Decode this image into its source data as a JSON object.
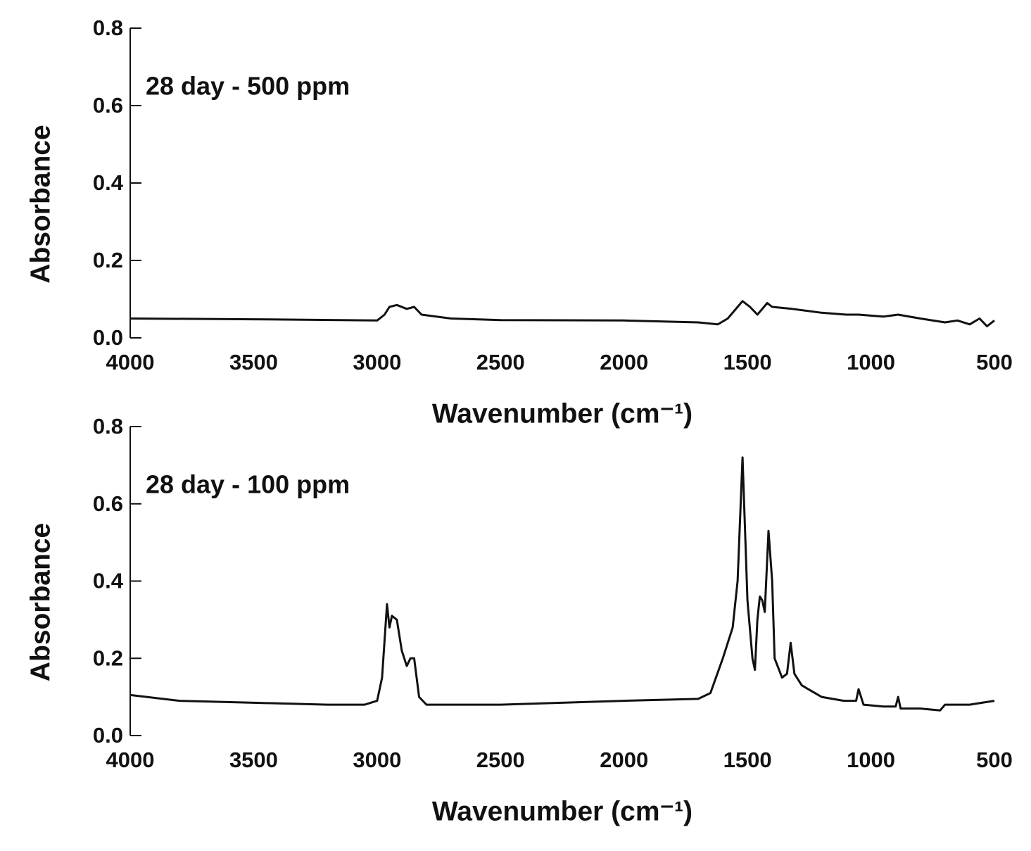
{
  "chart_data": [
    {
      "type": "line",
      "annotation": "28 day - 500 ppm",
      "xlabel": "Wavenumber (cm⁻¹)",
      "ylabel": "Absorbance",
      "xlim": [
        4000,
        500
      ],
      "xticks": [
        4000,
        3500,
        3000,
        2500,
        2000,
        1500,
        1000,
        500
      ],
      "ylim": [
        0,
        0.8
      ],
      "yticks": [
        {
          "value": 0,
          "label": "0.0"
        },
        0.2,
        0.4,
        0.6,
        0.8
      ],
      "series": [
        {
          "color": "#111111",
          "x": [
            4000,
            3500,
            3000,
            2970,
            2950,
            2920,
            2880,
            2850,
            2820,
            2700,
            2500,
            2000,
            1700,
            1620,
            1580,
            1540,
            1520,
            1490,
            1460,
            1440,
            1420,
            1400,
            1320,
            1200,
            1100,
            1050,
            950,
            890,
            800,
            700,
            650,
            600,
            560,
            530,
            500
          ],
          "values": [
            0.05,
            0.048,
            0.045,
            0.06,
            0.08,
            0.085,
            0.075,
            0.08,
            0.06,
            0.05,
            0.046,
            0.045,
            0.04,
            0.035,
            0.05,
            0.08,
            0.095,
            0.08,
            0.06,
            0.075,
            0.09,
            0.08,
            0.075,
            0.065,
            0.06,
            0.06,
            0.055,
            0.06,
            0.05,
            0.04,
            0.045,
            0.035,
            0.05,
            0.03,
            0.045
          ]
        }
      ]
    },
    {
      "type": "line",
      "annotation": "28 day - 100 ppm",
      "xlabel": "Wavenumber (cm⁻¹)",
      "ylabel": "Absorbance",
      "xlim": [
        4000,
        500
      ],
      "xticks": [
        4000,
        3500,
        3000,
        2500,
        2000,
        1500,
        1000,
        500
      ],
      "ylim": [
        0,
        0.8
      ],
      "yticks": [
        {
          "value": 0,
          "label": "0.0"
        },
        0.2,
        0.4,
        0.6,
        0.8
      ],
      "series": [
        {
          "color": "#111111",
          "x": [
            4000,
            3800,
            3500,
            3200,
            3050,
            3000,
            2980,
            2960,
            2950,
            2940,
            2920,
            2900,
            2880,
            2865,
            2850,
            2830,
            2800,
            2500,
            2000,
            1700,
            1650,
            1600,
            1560,
            1540,
            1520,
            1500,
            1480,
            1470,
            1460,
            1450,
            1440,
            1430,
            1415,
            1400,
            1390,
            1360,
            1340,
            1325,
            1310,
            1280,
            1200,
            1110,
            1060,
            1050,
            1030,
            950,
            900,
            890,
            880,
            800,
            720,
            700,
            600,
            500
          ],
          "values": [
            0.105,
            0.09,
            0.085,
            0.08,
            0.08,
            0.09,
            0.15,
            0.34,
            0.28,
            0.31,
            0.3,
            0.22,
            0.18,
            0.2,
            0.2,
            0.1,
            0.08,
            0.08,
            0.09,
            0.095,
            0.11,
            0.2,
            0.28,
            0.4,
            0.72,
            0.35,
            0.2,
            0.17,
            0.3,
            0.36,
            0.35,
            0.32,
            0.53,
            0.4,
            0.2,
            0.15,
            0.16,
            0.24,
            0.16,
            0.13,
            0.1,
            0.09,
            0.09,
            0.12,
            0.08,
            0.075,
            0.075,
            0.1,
            0.07,
            0.07,
            0.065,
            0.08,
            0.08,
            0.09
          ]
        }
      ]
    }
  ]
}
